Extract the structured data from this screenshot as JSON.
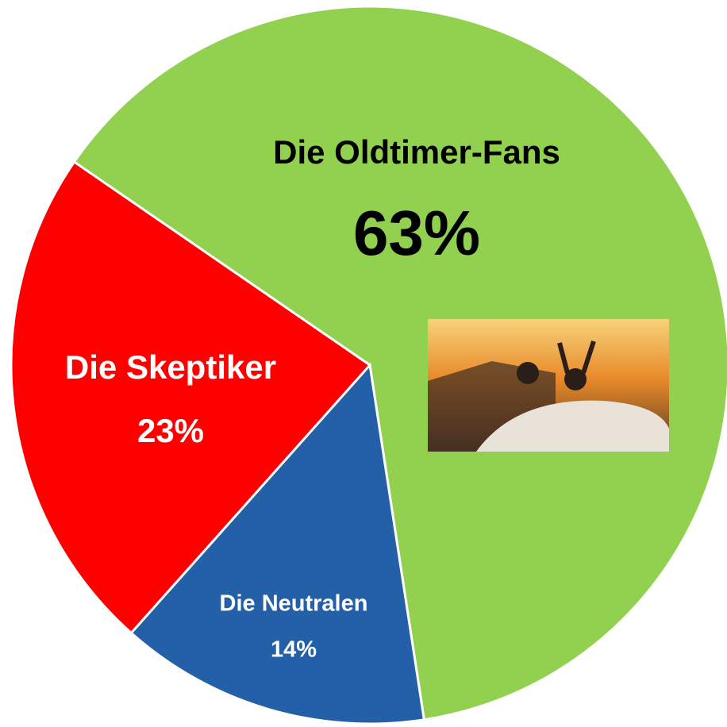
{
  "chart_data": {
    "type": "pie",
    "categories": [
      "Die Oldtimer-Fans",
      "Die Neutralen",
      "Die Skeptiker"
    ],
    "values": [
      63,
      14,
      23
    ],
    "value_labels": [
      "63%",
      "14%",
      "23%"
    ],
    "colors": [
      "#92d050",
      "#2360a8",
      "#ff0000"
    ]
  }
}
